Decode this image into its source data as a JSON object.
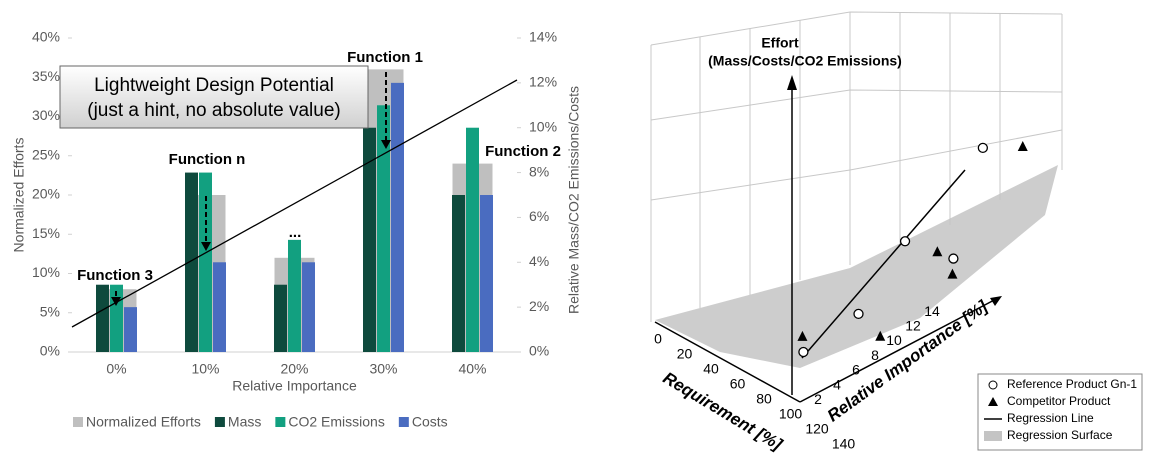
{
  "chart_data": [
    {
      "type": "bar",
      "categories": [
        "0%",
        "10%",
        "20%",
        "30%",
        "40%"
      ],
      "series": [
        {
          "name": "Normalized Efforts",
          "color": "#bfbfbf",
          "axis": "y",
          "values": [
            8,
            20,
            12,
            36,
            24
          ]
        },
        {
          "name": "Mass",
          "color": "#0e4a3d",
          "axis": "y2",
          "values": [
            3,
            8,
            3,
            10,
            7
          ]
        },
        {
          "name": "CO2 Emissions",
          "color": "#12a080",
          "axis": "y2",
          "values": [
            3,
            8,
            5,
            11,
            10
          ]
        },
        {
          "name": "Costs",
          "color": "#4a6cc0",
          "axis": "y2",
          "values": [
            2,
            4,
            4,
            12,
            7
          ]
        }
      ],
      "ylabel": "Normalized Efforts",
      "y2label": "Relative Mass/CO2 Emissions/Costs",
      "xlabel": "Relative Importance",
      "ylim": [
        0,
        40
      ],
      "yticks": [
        {
          "value": 0,
          "label": "0%"
        },
        {
          "value": 5,
          "label": "5%"
        },
        {
          "value": 10,
          "label": "10%"
        },
        {
          "value": 15,
          "label": "15%"
        },
        {
          "value": 20,
          "label": "20%"
        },
        {
          "value": 25,
          "label": "25%"
        },
        {
          "value": 30,
          "label": "30%"
        },
        {
          "value": 35,
          "label": "35%"
        },
        {
          "value": 40,
          "label": "40%"
        }
      ],
      "y2lim": [
        0,
        14
      ],
      "y2ticks": [
        {
          "value": 0,
          "label": "0%"
        },
        {
          "value": 2,
          "label": "2%"
        },
        {
          "value": 4,
          "label": "4%"
        },
        {
          "value": 6,
          "label": "6%"
        },
        {
          "value": 8,
          "label": "8%"
        },
        {
          "value": 10,
          "label": "10%"
        },
        {
          "value": 12,
          "label": "12%"
        },
        {
          "value": 14,
          "label": "14%"
        }
      ],
      "annotations": [
        "Function 1",
        "Function n",
        "Function 3",
        "Function 2",
        "...",
        "Lightweight Design Potential",
        "(just a hint, no absolute value)"
      ],
      "legend": "bottom"
    },
    {
      "type": "scatter3d",
      "title": "Effort",
      "subtitle": "(Mass/Costs/CO2 Emissions)",
      "xlabel": "Requirement [%]",
      "ylabel": "Relative Importance [%]",
      "xticks": [
        0,
        20,
        40,
        60,
        80,
        100,
        120,
        140
      ],
      "yticks": [
        2,
        4,
        6,
        8,
        10,
        12,
        14
      ],
      "series": [
        {
          "name": "Reference Product Gn-1",
          "marker": "circle",
          "x": [
            100,
            100,
            100,
            120,
            120
          ],
          "y": [
            2.2,
            8,
            12.9,
            15.2,
            18.3
          ],
          "z": [
            9.6,
            8.1,
            20.3,
            13.9,
            43.2
          ]
        },
        {
          "name": "Competitor Product",
          "marker": "triangle",
          "x": [
            100,
            120,
            100,
            120,
            120
          ],
          "y": [
            2.1,
            7.5,
            16.3,
            15.1,
            22.5
          ],
          "z": [
            14.9,
            6.7,
            8.3,
            8.8,
            33.2
          ]
        }
      ],
      "legend_extra": [
        "Regression Line",
        "Regression Surface"
      ],
      "legend": "lower right"
    }
  ]
}
